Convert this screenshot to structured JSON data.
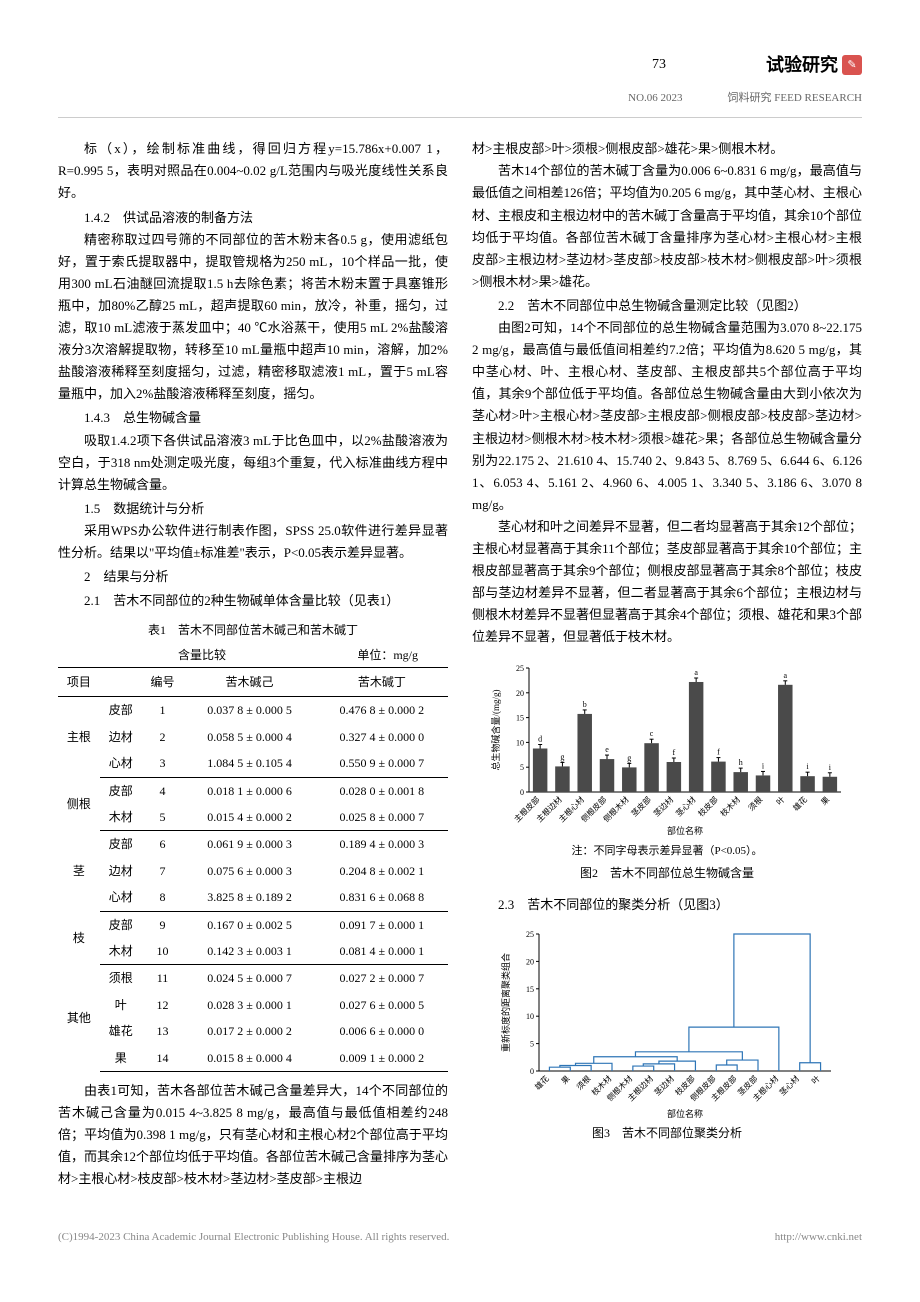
{
  "header": {
    "page_num": "73",
    "journal_title": "试验研究",
    "issue": "NO.06 2023",
    "journal_en": "饲料研究  FEED RESEARCH"
  },
  "left_col": {
    "p1": "标（x），绘制标准曲线，得回归方程y=15.786x+0.007 1，R=0.995 5，表明对照品在0.004~0.02 g/L范围内与吸光度线性关系良好。",
    "s142": "1.4.2　供试品溶液的制备方法",
    "p2": "精密称取过四号筛的不同部位的苦木粉末各0.5 g，使用滤纸包好，置于索氏提取器中，提取管规格为250 mL，10个样品一批，使用300 mL石油醚回流提取1.5 h去除色素；将苦木粉末置于具塞锥形瓶中，加80%乙醇25 mL，超声提取60 min，放冷，补重，摇匀，过滤，取10 mL滤液于蒸发皿中；40 ℃水浴蒸干，使用5 mL 2%盐酸溶液分3次溶解提取物，转移至10 mL量瓶中超声10 min，溶解，加2%盐酸溶液稀释至刻度摇匀，过滤，精密移取滤液1 mL，置于5 mL容量瓶中，加入2%盐酸溶液稀释至刻度，摇匀。",
    "s143": "1.4.3　总生物碱含量",
    "p3": "吸取1.4.2项下各供试品溶液3 mL于比色皿中，以2%盐酸溶液为空白，于318 nm处测定吸光度，每组3个重复，代入标准曲线方程中计算总生物碱含量。",
    "s15": "1.5　数据统计与分析",
    "p4": "采用WPS办公软件进行制表作图，SPSS 25.0软件进行差异显著性分析。结果以\"平均值±标准差\"表示，P<0.05表示差异显著。",
    "s2": "2　结果与分析",
    "s21": "2.1　苦木不同部位的2种生物碱单体含量比较（见表1）",
    "table_caption": "表1　苦木不同部位苦木碱己和苦木碱丁",
    "table_sub_left": "含量比较",
    "table_sub_right": "单位：mg/g",
    "p5": "由表1可知，苦木各部位苦木碱己含量差异大，14个不同部位的苦木碱己含量为0.015 4~3.825 8 mg/g，最高值与最低值相差约248倍；平均值为0.398 1 mg/g，只有茎心材和主根心材2个部位高于平均值，而其余12个部位均低于平均值。各部位苦木碱己含量排序为茎心材>主根心材>枝皮部>枝木材>茎边材>茎皮部>主根边"
  },
  "table1": {
    "headers": [
      "项目",
      "",
      "编号",
      "苦木碱己",
      "苦木碱丁"
    ],
    "groups": [
      {
        "name": "主根",
        "rows": [
          {
            "part": "皮部",
            "num": "1",
            "a": "0.037 8 ± 0.000 5",
            "b": "0.476 8 ± 0.000 2"
          },
          {
            "part": "边材",
            "num": "2",
            "a": "0.058 5 ± 0.000 4",
            "b": "0.327 4 ± 0.000 0"
          },
          {
            "part": "心材",
            "num": "3",
            "a": "1.084 5 ± 0.105 4",
            "b": "0.550 9 ± 0.000 7"
          }
        ]
      },
      {
        "name": "侧根",
        "rows": [
          {
            "part": "皮部",
            "num": "4",
            "a": "0.018 1 ± 0.000 6",
            "b": "0.028 0 ± 0.001 8"
          },
          {
            "part": "木材",
            "num": "5",
            "a": "0.015 4 ± 0.000 2",
            "b": "0.025 8 ± 0.000 7"
          }
        ]
      },
      {
        "name": "茎",
        "rows": [
          {
            "part": "皮部",
            "num": "6",
            "a": "0.061 9 ± 0.000 3",
            "b": "0.189 4 ± 0.000 3"
          },
          {
            "part": "边材",
            "num": "7",
            "a": "0.075 6 ± 0.000 3",
            "b": "0.204 8 ± 0.002 1"
          },
          {
            "part": "心材",
            "num": "8",
            "a": "3.825 8 ± 0.189 2",
            "b": "0.831 6 ± 0.068 8"
          }
        ]
      },
      {
        "name": "枝",
        "rows": [
          {
            "part": "皮部",
            "num": "9",
            "a": "0.167 0 ± 0.002 5",
            "b": "0.091 7 ± 0.000 1"
          },
          {
            "part": "木材",
            "num": "10",
            "a": "0.142 3 ± 0.003 1",
            "b": "0.081 4 ± 0.000 1"
          }
        ]
      },
      {
        "name": "其他",
        "rows": [
          {
            "part": "须根",
            "num": "11",
            "a": "0.024 5 ± 0.000 7",
            "b": "0.027 2 ± 0.000 7"
          },
          {
            "part": "叶",
            "num": "12",
            "a": "0.028 3 ± 0.000 1",
            "b": "0.027 6 ± 0.000 5"
          },
          {
            "part": "雄花",
            "num": "13",
            "a": "0.017 2 ± 0.000 2",
            "b": "0.006 6 ± 0.000 0"
          },
          {
            "part": "果",
            "num": "14",
            "a": "0.015 8 ± 0.000 4",
            "b": "0.009 1 ± 0.000 2"
          }
        ]
      }
    ]
  },
  "right_col": {
    "p1": "材>主根皮部>叶>须根>侧根皮部>雄花>果>侧根木材。",
    "p2": "苦木14个部位的苦木碱丁含量为0.006 6~0.831 6 mg/g，最高值与最低值之间相差126倍；平均值为0.205 6 mg/g，其中茎心材、主根心材、主根皮和主根边材中的苦木碱丁含量高于平均值，其余10个部位均低于平均值。各部位苦木碱丁含量排序为茎心材>主根心材>主根皮部>主根边材>茎边材>茎皮部>枝皮部>枝木材>侧根皮部>叶>须根>侧根木材>果>雄花。",
    "s22": "2.2　苦木不同部位中总生物碱含量测定比较（见图2）",
    "p3": "由图2可知，14个不同部位的总生物碱含量范围为3.070 8~22.175 2 mg/g，最高值与最低值间相差约7.2倍；平均值为8.620 5 mg/g，其中茎心材、叶、主根心材、茎皮部、主根皮部共5个部位高于平均值，其余9个部位低于平均值。各部位总生物碱含量由大到小依次为茎心材>叶>主根心材>茎皮部>主根皮部>侧根皮部>枝皮部>茎边材>主根边材>侧根木材>枝木材>须根>雄花>果；各部位总生物碱含量分别为22.175 2、21.610 4、15.740 2、9.843 5、8.769 5、6.644 6、6.126 1、6.053 4、5.161 2、4.960 6、4.005 1、3.340 5、3.186 6、3.070 8 mg/g。",
    "p4": "茎心材和叶之间差异不显著，但二者均显著高于其余12个部位；主根心材显著高于其余11个部位；茎皮部显著高于其余10个部位；主根皮部显著高于其余9个部位；侧根皮部显著高于其余8个部位；枝皮部与茎边材差异不显著，但二者显著高于其余6个部位；主根边材与侧根木材差异不显著但显著高于其余4个部位；须根、雄花和果3个部位差异不显著，但显著低于枝木材。",
    "fig2_note": "注：不同字母表示差异显著（P<0.05）。",
    "fig2_caption": "图2　苦木不同部位总生物碱含量",
    "s23": "2.3　苦木不同部位的聚类分析（见图3）",
    "fig3_caption": "图3　苦木不同部位聚类分析"
  },
  "chart2": {
    "type": "bar",
    "ylabel": "总生物碱含量/(mg/g)",
    "xlabel": "部位名称",
    "ylim": [
      0,
      25
    ],
    "ytick_step": 5,
    "categories": [
      "主根皮部",
      "主根边材",
      "主根心材",
      "侧根皮部",
      "侧根木材",
      "茎皮部",
      "茎边材",
      "茎心材",
      "枝皮部",
      "枝木材",
      "须根",
      "叶",
      "雄花",
      "果"
    ],
    "values": [
      8.77,
      5.16,
      15.74,
      6.64,
      4.96,
      9.84,
      6.05,
      22.18,
      6.13,
      4.01,
      3.34,
      21.61,
      3.19,
      3.07
    ],
    "sig_letters": [
      "d",
      "g",
      "b",
      "e",
      "g",
      "c",
      "f",
      "a",
      "f",
      "h",
      "i",
      "a",
      "i",
      "i"
    ],
    "bar_color": "#4a4a4a",
    "bg_color": "#ffffff",
    "axis_color": "#000000",
    "label_fontsize": 8
  },
  "chart3": {
    "type": "dendrogram",
    "ylabel": "重新标度的距离聚类组合",
    "xlabel": "部位名称",
    "ylim": [
      0,
      25
    ],
    "ytick_step": 5,
    "leaves": [
      "雄花",
      "果",
      "须根",
      "枝木材",
      "侧根木材",
      "主根边材",
      "茎边材",
      "枝皮部",
      "侧根皮部",
      "主根皮部",
      "茎皮部",
      "主根心材",
      "茎心材",
      "叶"
    ],
    "line_color": "#2e75b6",
    "axis_color": "#000000"
  },
  "footer": {
    "copyright": "(C)1994-2023 China Academic Journal Electronic Publishing House. All rights reserved.",
    "url": "http://www.cnki.net"
  }
}
